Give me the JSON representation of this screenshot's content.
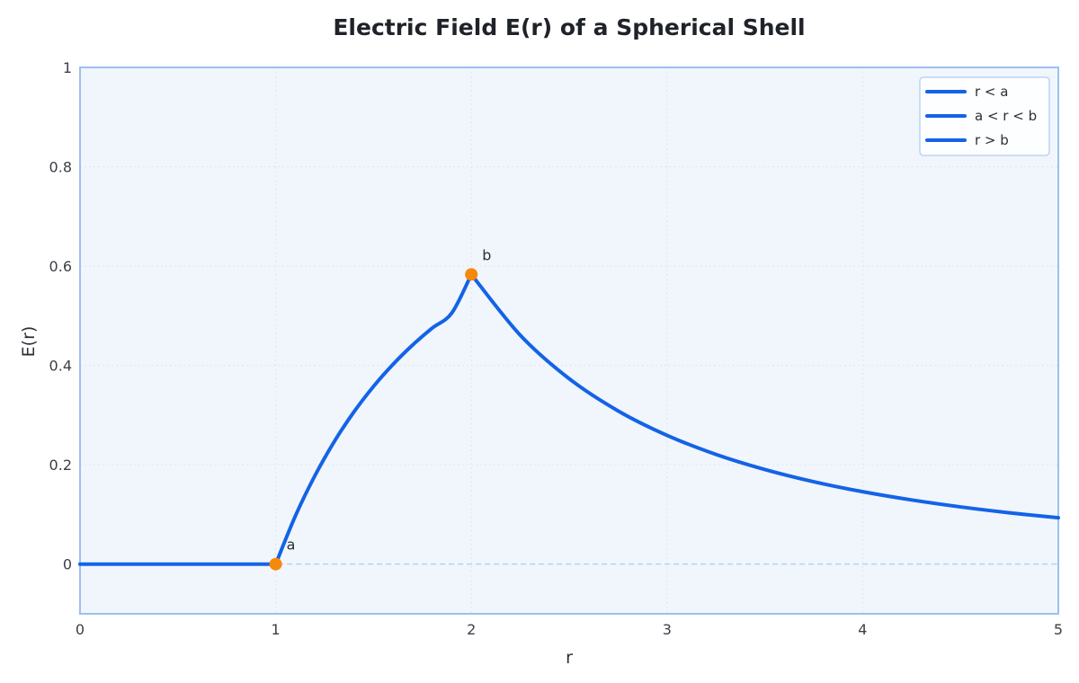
{
  "chart_data": {
    "type": "line",
    "title": "Electric Field E(r) of a Spherical Shell",
    "xlabel": "r",
    "ylabel": "E(r)",
    "xlim": [
      0,
      5
    ],
    "ylim": [
      -0.1,
      1
    ],
    "x_ticks": [
      0,
      1,
      2,
      3,
      4,
      5
    ],
    "x_tick_labels": [
      "0",
      "1",
      "2",
      "3",
      "4",
      "5"
    ],
    "y_ticks": [
      0,
      0.2,
      0.4,
      0.6,
      0.8,
      1
    ],
    "y_tick_labels": [
      "0",
      "0.2",
      "0.4",
      "0.6",
      "0.8",
      "1"
    ],
    "grid": true,
    "legend_position": "top-right",
    "series": [
      {
        "name": "r < a",
        "color": "#1463e6",
        "x": [
          0,
          0.25,
          0.5,
          0.75,
          1.0
        ],
        "y": [
          0,
          0,
          0,
          0,
          0
        ]
      },
      {
        "name": "a < r < b",
        "color": "#1463e6",
        "x": [
          1.0,
          1.1,
          1.2,
          1.3,
          1.4,
          1.5,
          1.6,
          1.7,
          1.8,
          1.9,
          2.0
        ],
        "y": [
          0,
          0.0964,
          0.1777,
          0.247,
          0.3065,
          0.3578,
          0.4023,
          0.4412,
          0.4753,
          0.5055,
          0.5833
        ]
      },
      {
        "name": "r > b",
        "color": "#1463e6",
        "x": [
          2.0,
          2.25,
          2.5,
          2.75,
          3.0,
          3.25,
          3.5,
          3.75,
          4.0,
          4.25,
          4.5,
          4.75,
          5.0
        ],
        "y": [
          0.5833,
          0.4609,
          0.3733,
          0.3085,
          0.2593,
          0.2209,
          0.1905,
          0.1659,
          0.1458,
          0.1292,
          0.1152,
          0.1034,
          0.0933
        ]
      }
    ],
    "reference_line": {
      "y": 0,
      "style": "dashed",
      "color": "#bcd4f2"
    },
    "markers": [
      {
        "label": "a",
        "x": 1,
        "y": 0,
        "color": "#f5890b"
      },
      {
        "label": "b",
        "x": 2,
        "y": 0.5833,
        "color": "#f5890b"
      }
    ],
    "colors": {
      "plot_background": "#f1f6fd",
      "plot_border": "#9cc0f0",
      "grid": "#dfe6ef",
      "line": "#1463e6",
      "marker": "#f5890b"
    }
  }
}
